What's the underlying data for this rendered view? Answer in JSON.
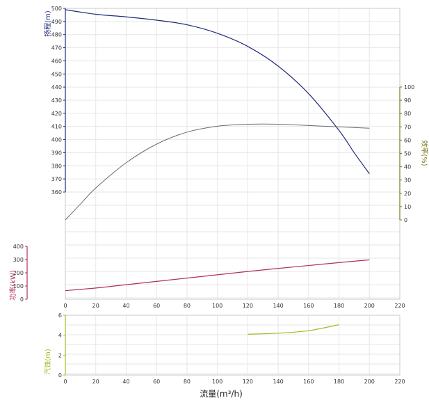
{
  "colors": {
    "head": "#1f2a7a",
    "efficiency": "#6b6b6b",
    "power": "#b0305a",
    "npsh": "#a8b820",
    "head_axis": "#1f2a7a",
    "efficiency_axis": "#7a7a20",
    "power_axis": "#b0305a",
    "npsh_axis": "#a8b820"
  },
  "axes": {
    "x_title": "流量(m³/h)",
    "head_title": "扬程(m)",
    "efficiency_title": "效率(%)",
    "power_title": "功率(kW)",
    "npsh_title": "汽蚀(m)"
  },
  "chart_data": [
    {
      "type": "line",
      "panel": "main",
      "x_axis": {
        "label": "流量(m³/h)",
        "ticks": [
          0,
          20,
          40,
          60,
          80,
          100,
          120,
          140,
          160,
          180,
          200,
          220
        ],
        "range": [
          0,
          220
        ]
      },
      "grid": true,
      "series": [
        {
          "key": "head",
          "axis": "扬程(m)",
          "axis_side": "left",
          "axis_ticks": [
            360,
            370,
            380,
            390,
            400,
            410,
            420,
            430,
            440,
            450,
            460,
            470,
            480,
            490,
            500
          ],
          "axis_range": [
            360,
            500
          ],
          "points": [
            [
              0,
              499
            ],
            [
              20,
              495.5
            ],
            [
              40,
              493.5
            ],
            [
              60,
              491
            ],
            [
              80,
              487.5
            ],
            [
              100,
              481
            ],
            [
              120,
              471
            ],
            [
              140,
              456
            ],
            [
              160,
              435
            ],
            [
              180,
              407
            ],
            [
              190,
              390
            ],
            [
              200,
              374
            ]
          ]
        },
        {
          "key": "efficiency",
          "axis": "效率(%)",
          "axis_side": "right",
          "axis_ticks": [
            0,
            10,
            20,
            30,
            40,
            50,
            60,
            70,
            80,
            90,
            100
          ],
          "axis_range": [
            0,
            100
          ],
          "points": [
            [
              0,
              0
            ],
            [
              10,
              12
            ],
            [
              20,
              24
            ],
            [
              40,
              43
            ],
            [
              60,
              57
            ],
            [
              80,
              66
            ],
            [
              100,
              70.5
            ],
            [
              120,
              72
            ],
            [
              140,
              72
            ],
            [
              160,
              71
            ],
            [
              180,
              70
            ],
            [
              200,
              69
            ]
          ]
        },
        {
          "key": "power",
          "axis": "功率(kW)",
          "axis_side": "left",
          "axis_ticks": [
            0,
            100,
            200,
            300,
            400
          ],
          "axis_range": [
            0,
            400
          ],
          "points": [
            [
              0,
              65
            ],
            [
              20,
              85
            ],
            [
              40,
              110
            ],
            [
              60,
              135
            ],
            [
              80,
              160
            ],
            [
              100,
              185
            ],
            [
              120,
              210
            ],
            [
              140,
              233
            ],
            [
              160,
              255
            ],
            [
              180,
              277
            ],
            [
              200,
              298
            ]
          ]
        }
      ]
    },
    {
      "type": "line",
      "panel": "bottom",
      "x_axis": {
        "label": "流量(m³/h)",
        "ticks": [
          0,
          20,
          40,
          60,
          80,
          100,
          120,
          140,
          160,
          180,
          200,
          220
        ],
        "range": [
          0,
          220
        ]
      },
      "grid": true,
      "series": [
        {
          "key": "npsh",
          "axis": "汽蚀(m)",
          "axis_side": "left",
          "axis_ticks": [
            0,
            2,
            4,
            6
          ],
          "axis_range": [
            0,
            6
          ],
          "points": [
            [
              120,
              4.1
            ],
            [
              140,
              4.2
            ],
            [
              160,
              4.45
            ],
            [
              180,
              5.05
            ]
          ]
        }
      ]
    }
  ]
}
